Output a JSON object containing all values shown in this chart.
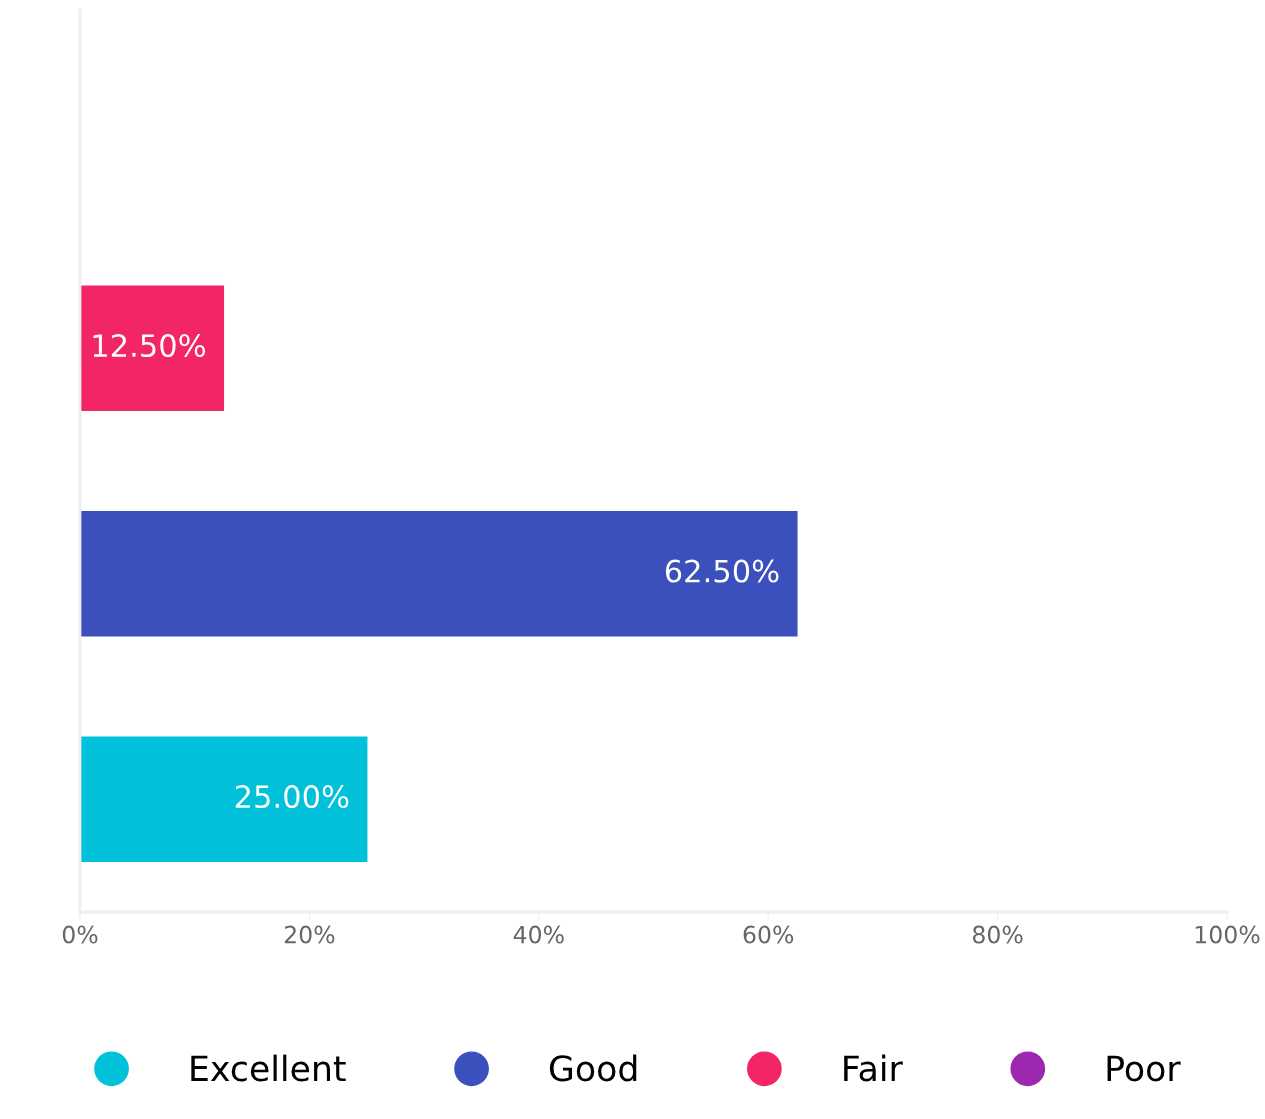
{
  "chart_data": {
    "type": "bar",
    "orientation": "horizontal",
    "categories": [
      null,
      null,
      null,
      null
    ],
    "series": [
      {
        "name": "Excellent",
        "color": "#00c1d9",
        "values": [
          null,
          null,
          null,
          25
        ],
        "value_labels": [
          null,
          null,
          null,
          "25.00%"
        ]
      },
      {
        "name": "Good",
        "color": "#3b50bc",
        "values": [
          null,
          null,
          62.5,
          null
        ],
        "value_labels": [
          null,
          null,
          "62.50%",
          null
        ]
      },
      {
        "name": "Fair",
        "color": "#f22565",
        "values": [
          null,
          12.5,
          null,
          null
        ],
        "value_labels": [
          null,
          "12.50%",
          null,
          null
        ]
      },
      {
        "name": "Poor",
        "color": "#9c27b0",
        "values": [
          0,
          null,
          null,
          null
        ],
        "value_labels": [
          null,
          null,
          null,
          null
        ]
      }
    ],
    "xlim": [
      0,
      100
    ],
    "xticks": [
      {
        "value": 0,
        "label": "0%"
      },
      {
        "value": 20,
        "label": "20%"
      },
      {
        "value": 40,
        "label": "40%"
      },
      {
        "value": 60,
        "label": "60%"
      },
      {
        "value": 80,
        "label": "80%"
      },
      {
        "value": 100,
        "label": "100%"
      }
    ],
    "tick_labels": "x",
    "grid": false,
    "legend": "bottom"
  }
}
